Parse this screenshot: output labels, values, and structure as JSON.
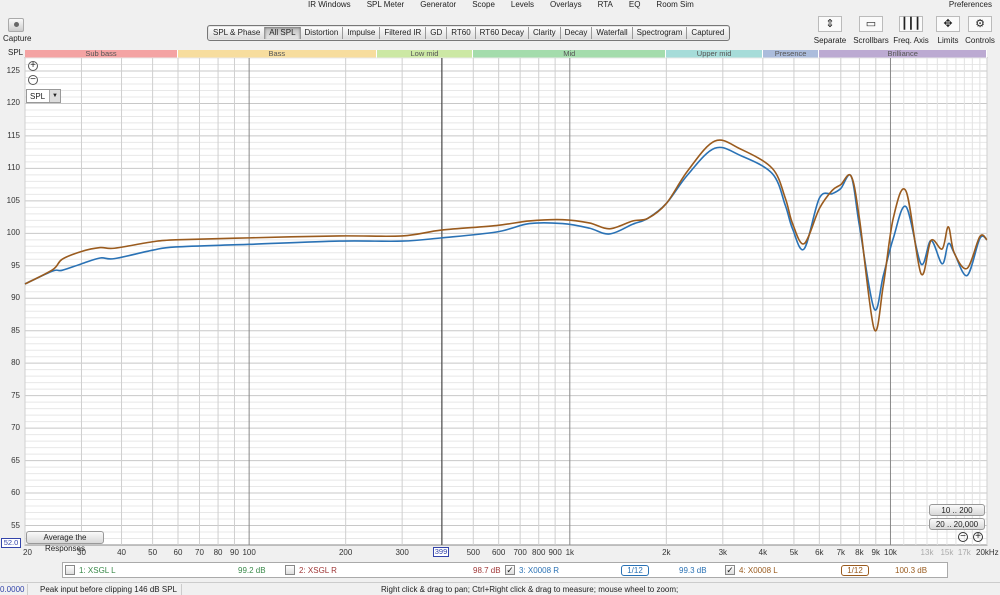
{
  "menu": [
    "IR Windows",
    "SPL Meter",
    "Generator",
    "Scope",
    "Levels",
    "Overlays",
    "RTA",
    "EQ",
    "Room Sim"
  ],
  "preferences": "Preferences",
  "capture": "Capture",
  "tabs": [
    {
      "label": "SPL & Phase"
    },
    {
      "label": "All SPL",
      "selected": true
    },
    {
      "label": "Distortion"
    },
    {
      "label": "Impulse"
    },
    {
      "label": "Filtered IR"
    },
    {
      "label": "GD"
    },
    {
      "label": "RT60"
    },
    {
      "label": "RT60 Decay"
    },
    {
      "label": "Clarity"
    },
    {
      "label": "Decay"
    },
    {
      "label": "Waterfall"
    },
    {
      "label": "Spectrogram"
    },
    {
      "label": "Captured"
    }
  ],
  "tools": [
    {
      "label": "Separate",
      "icon": "separate-icon"
    },
    {
      "label": "Scrollbars",
      "icon": "scrollbars-icon"
    },
    {
      "label": "Freq. Axis",
      "icon": "freq-axis-icon"
    },
    {
      "label": "Limits",
      "icon": "limits-icon"
    },
    {
      "label": "Controls",
      "icon": "gear-icon"
    }
  ],
  "y_unit": "SPL",
  "measure_select": "SPL",
  "average_button": "Average the Responses",
  "range_buttons": [
    "10 .. 200",
    "20 .. 20,000"
  ],
  "cursor": {
    "y_readout": "52.0",
    "x_readout": "399"
  },
  "bands": [
    {
      "label": "Sub bass",
      "from": 20,
      "to": 60,
      "color": "#f4a3a3"
    },
    {
      "label": "Bass",
      "from": 60,
      "to": 250,
      "color": "#f7dd9e"
    },
    {
      "label": "Low mid",
      "from": 250,
      "to": 500,
      "color": "#cce8a4"
    },
    {
      "label": "Mid",
      "from": 500,
      "to": 2000,
      "color": "#a4dcac"
    },
    {
      "label": "Upper mid",
      "from": 2000,
      "to": 4000,
      "color": "#a6dcd9"
    },
    {
      "label": "Presence",
      "from": 4000,
      "to": 6000,
      "color": "#abbcdc"
    },
    {
      "label": "Brilliance",
      "from": 6000,
      "to": 20000,
      "color": "#bcaad2"
    }
  ],
  "legend": [
    {
      "label": "1: XSGL L",
      "value": "99.2 dB",
      "checked": false,
      "color": "#3a8a4a"
    },
    {
      "label": "2: XSGL R",
      "value": "98.7 dB",
      "checked": false,
      "color": "#a03838"
    },
    {
      "label": "3: X0008 R",
      "value": "99.3 dB",
      "checked": true,
      "color": "#2a72b5",
      "smoothing": "1/12"
    },
    {
      "label": "4: X0008 L",
      "value": "100.3 dB",
      "checked": true,
      "color": "#9a5b1e",
      "smoothing": "1/12"
    }
  ],
  "status": {
    "left_value": "0.0000",
    "peak": "Peak input before clipping 146 dB SPL",
    "hint": "Right click & drag to pan; Ctrl+Right click & drag to measure; mouse wheel to zoom;"
  },
  "chart_data": {
    "type": "line",
    "x_scale": "log",
    "xlim": [
      20,
      20000
    ],
    "ylim": [
      52,
      127
    ],
    "grid": true,
    "ylabel": "SPL",
    "y_ticks": [
      55,
      60,
      65,
      70,
      75,
      80,
      85,
      90,
      95,
      100,
      105,
      110,
      115,
      120,
      125
    ],
    "x_ticks": [
      {
        "f": 20,
        "t": "20"
      },
      {
        "f": 30,
        "t": "30"
      },
      {
        "f": 40,
        "t": "40"
      },
      {
        "f": 50,
        "t": "50"
      },
      {
        "f": 60,
        "t": "60"
      },
      {
        "f": 70,
        "t": "70"
      },
      {
        "f": 80,
        "t": "80"
      },
      {
        "f": 90,
        "t": "90"
      },
      {
        "f": 100,
        "t": "100"
      },
      {
        "f": 200,
        "t": "200"
      },
      {
        "f": 300,
        "t": "300"
      },
      {
        "f": 500,
        "t": "500"
      },
      {
        "f": 600,
        "t": "600"
      },
      {
        "f": 700,
        "t": "700"
      },
      {
        "f": 800,
        "t": "800"
      },
      {
        "f": 900,
        "t": "900"
      },
      {
        "f": 1000,
        "t": "1k"
      },
      {
        "f": 2000,
        "t": "2k"
      },
      {
        "f": 3000,
        "t": "3k"
      },
      {
        "f": 4000,
        "t": "4k"
      },
      {
        "f": 5000,
        "t": "5k"
      },
      {
        "f": 6000,
        "t": "6k"
      },
      {
        "f": 7000,
        "t": "7k"
      },
      {
        "f": 8000,
        "t": "8k"
      },
      {
        "f": 9000,
        "t": "9k"
      },
      {
        "f": 10000,
        "t": "10k"
      },
      {
        "f": 13000,
        "t": "13k",
        "dim": true
      },
      {
        "f": 15000,
        "t": "15k",
        "dim": true
      },
      {
        "f": 17000,
        "t": "17k",
        "dim": true
      },
      {
        "f": 20000,
        "t": "20kHz"
      }
    ],
    "x": [
      20,
      24.4,
      26.1,
      30,
      34.3,
      38,
      50,
      59,
      100,
      191,
      300,
      398,
      590,
      748,
      950,
      1150,
      1330,
      1570,
      1750,
      2000,
      2330,
      2830,
      3400,
      4280,
      4700,
      4950,
      5380,
      6000,
      6580,
      7000,
      7540,
      8000,
      8890,
      9500,
      10200,
      11180,
      12450,
      13380,
      14500,
      15150,
      15800,
      17340,
      19000,
      20000
    ],
    "series": [
      {
        "name": "3: X0008 R",
        "color": "#2a72b5",
        "values": [
          92.2,
          94.2,
          94.3,
          95.3,
          96.2,
          96.1,
          97.4,
          97.9,
          98.3,
          98.8,
          98.8,
          99.3,
          100.2,
          101.5,
          101.5,
          100.8,
          99.9,
          101.4,
          102.3,
          104.6,
          109.0,
          113.1,
          112.0,
          109.2,
          104.3,
          100.7,
          97.6,
          105.4,
          106.1,
          106.9,
          108.8,
          101.2,
          88.4,
          93.5,
          99.2,
          104.1,
          95.3,
          98.9,
          95.3,
          98.4,
          97.0,
          93.5,
          99.2,
          99.0
        ]
      },
      {
        "name": "4: X0008 L",
        "color": "#9a5b1e",
        "values": [
          92.2,
          94.4,
          96.0,
          97.2,
          97.8,
          97.7,
          98.7,
          99.0,
          99.3,
          99.6,
          99.6,
          100.5,
          101.2,
          101.9,
          102.1,
          101.6,
          100.7,
          101.9,
          102.3,
          104.6,
          109.6,
          114.2,
          113.0,
          110.0,
          105.4,
          101.5,
          98.4,
          103.8,
          106.6,
          107.5,
          108.8,
          102.3,
          85.3,
          92.0,
          102.3,
          106.5,
          93.8,
          98.9,
          97.6,
          101.0,
          97.0,
          94.6,
          99.5,
          99.0
        ]
      }
    ]
  }
}
